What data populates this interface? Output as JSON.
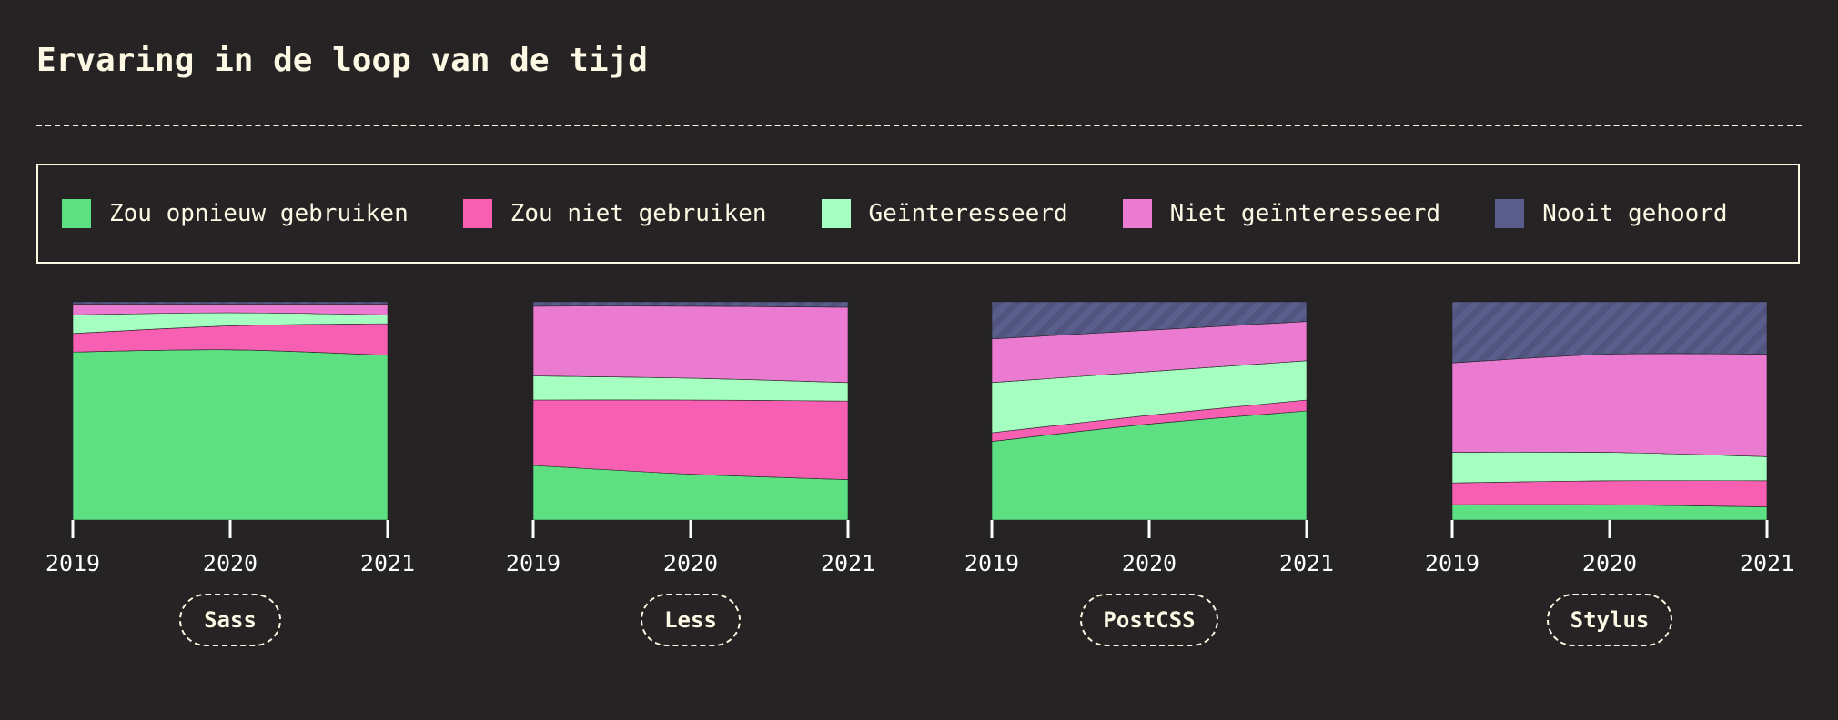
{
  "title": "Ervaring in de loop van de tijd",
  "legend": [
    {
      "label": "Zou opnieuw gebruiken",
      "color": "#5ce082"
    },
    {
      "label": "Zou niet gebruiken",
      "color": "#f75fb3"
    },
    {
      "label": "Geïnteresseerd",
      "color": "#a5ffc0"
    },
    {
      "label": "Niet geïnteresseerd",
      "color": "#ea7bd0"
    },
    {
      "label": "Nooit gehoord",
      "color": "#5a5e8c"
    }
  ],
  "chart_data": [
    {
      "type": "area",
      "stacked": true,
      "normalized": true,
      "x": [
        "2019",
        "2020",
        "2021"
      ],
      "ylim": [
        0,
        100
      ],
      "label": "Sass",
      "series": [
        {
          "name": "Zou opnieuw gebruiken",
          "values": [
            77,
            78,
            75.5
          ]
        },
        {
          "name": "Zou niet gebruiken",
          "values": [
            8.5,
            11,
            14.5
          ]
        },
        {
          "name": "Geïnteresseerd",
          "values": [
            8.5,
            6,
            4
          ]
        },
        {
          "name": "Niet geïnteresseerd",
          "values": [
            5,
            4,
            5
          ]
        },
        {
          "name": "Nooit gehoord",
          "values": [
            1,
            1,
            1
          ]
        }
      ]
    },
    {
      "type": "area",
      "stacked": true,
      "normalized": true,
      "x": [
        "2019",
        "2020",
        "2021"
      ],
      "ylim": [
        0,
        100
      ],
      "label": "Less",
      "series": [
        {
          "name": "Zou opnieuw gebruiken",
          "values": [
            25,
            21,
            18.5
          ]
        },
        {
          "name": "Zou niet gebruiken",
          "values": [
            30,
            34,
            36
          ]
        },
        {
          "name": "Geïnteresseerd",
          "values": [
            11,
            10,
            8.5
          ]
        },
        {
          "name": "Niet geïnteresseerd",
          "values": [
            32,
            33,
            34.5
          ]
        },
        {
          "name": "Nooit gehoord",
          "values": [
            2,
            2,
            2.5
          ]
        }
      ]
    },
    {
      "type": "area",
      "stacked": true,
      "normalized": true,
      "x": [
        "2019",
        "2020",
        "2021"
      ],
      "ylim": [
        0,
        100
      ],
      "label": "PostCSS",
      "series": [
        {
          "name": "Zou opnieuw gebruiken",
          "values": [
            36,
            44,
            50
          ]
        },
        {
          "name": "Zou niet gebruiken",
          "values": [
            4,
            4,
            5
          ]
        },
        {
          "name": "Geïnteresseerd",
          "values": [
            23,
            20,
            18
          ]
        },
        {
          "name": "Niet geïnteresseerd",
          "values": [
            20,
            19,
            18
          ]
        },
        {
          "name": "Nooit gehoord",
          "values": [
            17,
            13,
            9
          ]
        }
      ]
    },
    {
      "type": "area",
      "stacked": true,
      "normalized": true,
      "x": [
        "2019",
        "2020",
        "2021"
      ],
      "ylim": [
        0,
        100
      ],
      "label": "Stylus",
      "series": [
        {
          "name": "Zou opnieuw gebruiken",
          "values": [
            7,
            7,
            6
          ]
        },
        {
          "name": "Zou niet gebruiken",
          "values": [
            10,
            11,
            12
          ]
        },
        {
          "name": "Geïnteresseerd",
          "values": [
            14,
            13,
            11
          ]
        },
        {
          "name": "Niet geïnteresseerd",
          "values": [
            41,
            45,
            47
          ]
        },
        {
          "name": "Nooit gehoord",
          "values": [
            28,
            24,
            24
          ]
        }
      ]
    }
  ]
}
